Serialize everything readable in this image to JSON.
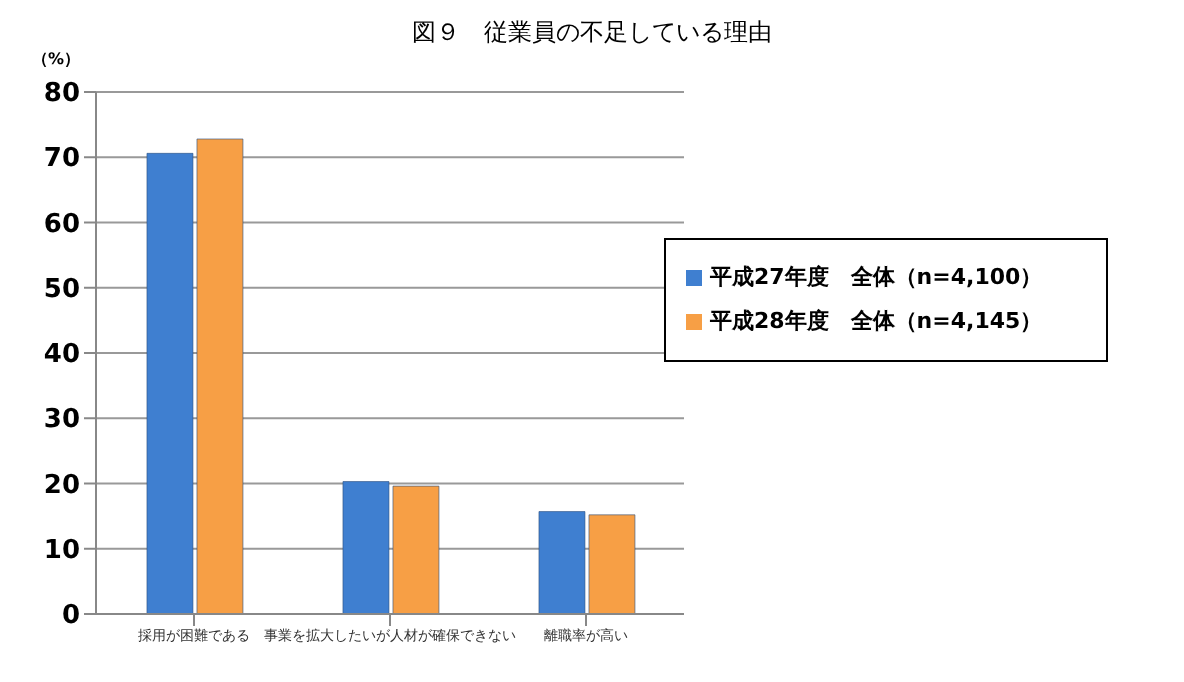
{
  "chart_data": {
    "type": "bar",
    "title": "図９　従業員の不足している理由",
    "ylabel": "（%）",
    "categories": [
      "採用が困難である",
      "事業を拡大したいが人材が確保できない",
      "離職率が高い"
    ],
    "series": [
      {
        "name": "平成27年度　全体（n=4,100）",
        "color": "#3f7fd0",
        "values": [
          70.6,
          20.3,
          15.7
        ]
      },
      {
        "name": "平成28年度　全体（n=4,145）",
        "color": "#f79f45",
        "values": [
          72.8,
          19.6,
          15.2
        ]
      }
    ],
    "ylim": [
      0,
      80
    ],
    "yticks": [
      0,
      10,
      20,
      30,
      40,
      50,
      60,
      70,
      80
    ],
    "grid": "y",
    "legend": "right"
  }
}
